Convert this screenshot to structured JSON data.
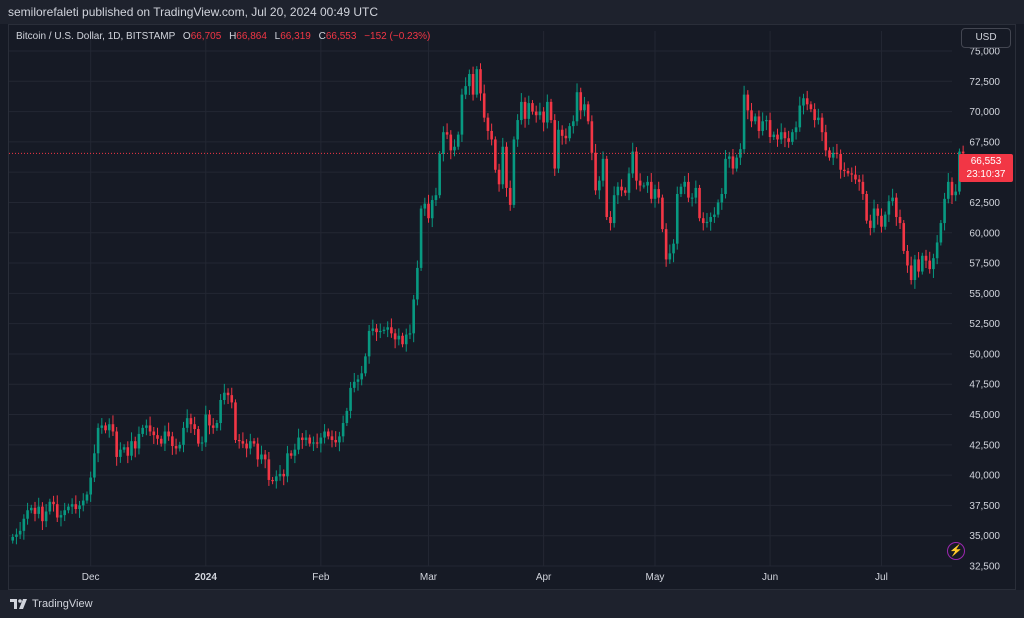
{
  "header": {
    "published": "semilorefaleti published on TradingView.com, Jul 20, 2024 00:49 UTC"
  },
  "legend": {
    "symbol": "Bitcoin / U.S. Dollar, 1D, BITSTAMP",
    "o_label": "O",
    "o_value": "66,705",
    "h_label": "H",
    "h_value": "66,864",
    "l_label": "L",
    "l_value": "66,319",
    "c_label": "C",
    "c_value": "66,553",
    "change": "−152 (−0.23%)"
  },
  "currency_button": "USD",
  "price_tag": {
    "price": "66,553",
    "countdown": "23:10:37"
  },
  "brand": {
    "name": "TradingView"
  },
  "colors": {
    "up": "#089981",
    "down": "#f23645",
    "background": "#161a25",
    "grid": "#232733"
  },
  "chart_data": {
    "type": "candlestick",
    "ylim": [
      32500,
      75000
    ],
    "y_ticks": [
      32500,
      35000,
      37500,
      40000,
      42500,
      45000,
      47500,
      50000,
      52500,
      55000,
      57500,
      60000,
      62500,
      65000,
      67500,
      70000,
      72500,
      75000
    ],
    "y_tick_labels": [
      "32,500",
      "35,000",
      "37,500",
      "40,000",
      "42,500",
      "45,000",
      "47,500",
      "50,000",
      "52,500",
      "55,000",
      "57,500",
      "60,000",
      "62,500",
      "65,000",
      "67,500",
      "70,000",
      "72,500",
      "75,000"
    ],
    "x_ticks": [
      {
        "label": "Dec",
        "day": 21
      },
      {
        "label": "2024",
        "day": 52
      },
      {
        "label": "Feb",
        "day": 83
      },
      {
        "label": "Mar",
        "day": 112
      },
      {
        "label": "Apr",
        "day": 143
      },
      {
        "label": "May",
        "day": 173
      },
      {
        "label": "Jun",
        "day": 204
      },
      {
        "label": "Jul",
        "day": 234
      }
    ],
    "x_range": [
      -1,
      253
    ],
    "last_price": 66553,
    "closes": [
      34900,
      35100,
      35400,
      36400,
      37100,
      37300,
      36800,
      37400,
      36200,
      37000,
      37800,
      37600,
      36500,
      36700,
      37100,
      37400,
      37600,
      37200,
      37500,
      37900,
      38400,
      39800,
      41800,
      43900,
      44100,
      43700,
      44200,
      43600,
      41500,
      42100,
      42300,
      41600,
      42800,
      42200,
      43400,
      43900,
      44100,
      43600,
      43300,
      43000,
      42600,
      43600,
      43200,
      42400,
      42200,
      42500,
      43900,
      44700,
      44200,
      43800,
      42600,
      42700,
      45000,
      44100,
      43900,
      44300,
      46200,
      46800,
      46600,
      46000,
      42900,
      42800,
      42600,
      42200,
      42800,
      42600,
      41300,
      41700,
      41300,
      39600,
      39500,
      39900,
      40100,
      39900,
      41800,
      41600,
      42100,
      43100,
      42900,
      43100,
      42600,
      42700,
      42600,
      43100,
      43600,
      43200,
      42900,
      42700,
      43200,
      44300,
      45300,
      47200,
      47700,
      47900,
      48400,
      49800,
      51900,
      52100,
      51800,
      51900,
      52000,
      52200,
      51700,
      51200,
      51500,
      50800,
      51600,
      51700,
      54500,
      57100,
      62000,
      62400,
      61200,
      62700,
      63100,
      66500,
      68300,
      68100,
      66800,
      67100,
      68100,
      71400,
      72100,
      73100,
      71400,
      73500,
      71500,
      69500,
      68400,
      67700,
      65200,
      64000,
      67100,
      63700,
      62300,
      67700,
      69300,
      70800,
      69400,
      70700,
      70000,
      69700,
      70000,
      69100,
      70800,
      69300,
      65300,
      68500,
      68000,
      67800,
      68800,
      69200,
      71600,
      70100,
      70600,
      69200,
      66600,
      63500,
      64300,
      66100,
      61300,
      60800,
      63100,
      63800,
      63500,
      63300,
      64900,
      66700,
      64300,
      63900,
      63900,
      64200,
      62800,
      63600,
      62900,
      60300,
      57800,
      58300,
      59100,
      63200,
      63800,
      64200,
      62900,
      62900,
      63700,
      61200,
      60800,
      60900,
      61300,
      61500,
      62500,
      63200,
      66100,
      66300,
      65300,
      66200,
      66900,
      71400,
      70100,
      69200,
      69600,
      68400,
      69200,
      69300,
      67900,
      68100,
      67700,
      68300,
      67800,
      67500,
      68300,
      68700,
      70500,
      71100,
      70600,
      70200,
      69300,
      69500,
      68300,
      66800,
      66200,
      66600,
      66500,
      65200,
      65100,
      64900,
      64800,
      64400,
      64200,
      63200,
      61000,
      60400,
      62000,
      61400,
      60500,
      61500,
      62600,
      62900,
      61300,
      60800,
      58500,
      57300,
      56100,
      57800,
      56800,
      58100,
      57700,
      57000,
      57900,
      59200,
      60800,
      62800,
      64200,
      63100,
      63400,
      66700,
      66553
    ]
  }
}
